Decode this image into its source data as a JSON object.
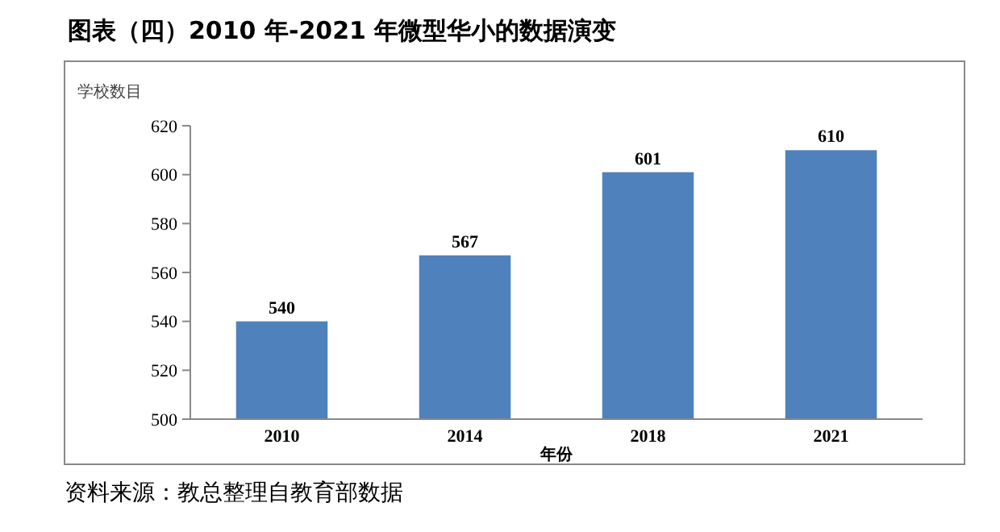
{
  "chart_data": {
    "type": "bar",
    "title": "图表（四）2010 年-2021 年微型华小的数据演变",
    "ylabel": "学校数目",
    "xlabel": "年份",
    "categories": [
      "2010",
      "2014",
      "2018",
      "2021"
    ],
    "values": [
      540,
      567,
      601,
      610
    ],
    "color": "#4f81bd",
    "ylim": [
      500,
      620
    ],
    "yticks": [
      500,
      520,
      540,
      560,
      580,
      600,
      620
    ],
    "grid": false,
    "data_labels": true,
    "annotations": [
      "资料来源：教总整理自教育部数据"
    ]
  }
}
